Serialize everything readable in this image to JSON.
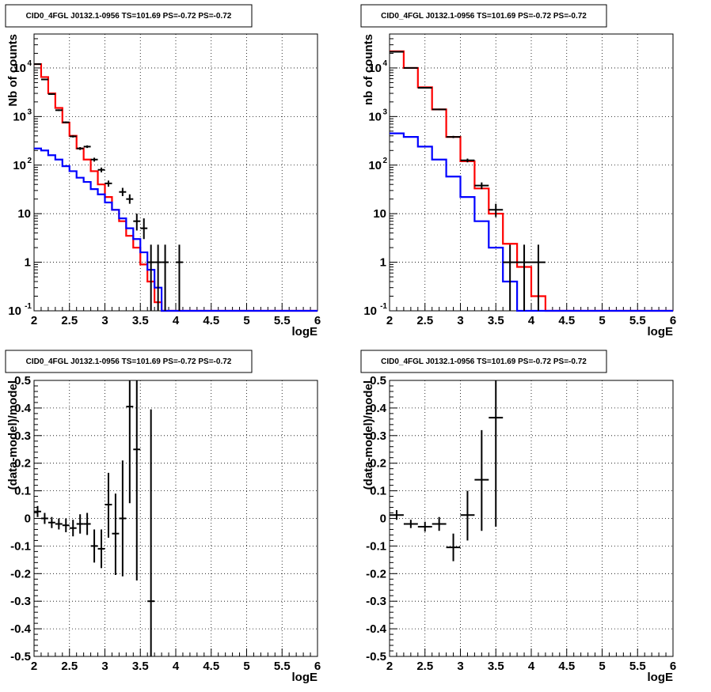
{
  "chart_data": [
    {
      "type": "line",
      "title": "CID0_4FGL J0132.1-0956 TS=101.69 PS=-0.72 PS=-0.72",
      "xlabel": "logE",
      "ylabel": "Nb of counts",
      "xlim": [
        2,
        6
      ],
      "ylim": [
        0.1,
        50000
      ],
      "log_y": true,
      "grid": true,
      "x_ticks": [
        "2",
        "2.5",
        "3",
        "3.5",
        "4",
        "4.5",
        "5",
        "5.5",
        "6"
      ],
      "y_ticks": [
        {
          "mant": "10",
          "exp": "-1",
          "v": 0.1
        },
        {
          "mant": "1",
          "exp": "",
          "v": 1
        },
        {
          "mant": "10",
          "exp": "",
          "v": 10
        },
        {
          "mant": "10",
          "exp": "2",
          "v": 100
        },
        {
          "mant": "10",
          "exp": "3",
          "v": 1000
        },
        {
          "mant": "10",
          "exp": "4",
          "v": 10000
        }
      ],
      "bin_width": 0.1,
      "bin_start": 2.0,
      "series": [
        {
          "color": "#ff0000",
          "values": [
            12000,
            6500,
            3000,
            1500,
            750,
            400,
            220,
            130,
            75,
            40,
            22,
            12,
            7,
            3.5,
            2.0,
            0.9,
            0.4,
            0.15,
            0.1,
            0.1,
            0.1,
            0.1,
            0.1,
            0.1,
            0.1,
            0.1,
            0.1,
            0.1,
            0.1,
            0.1,
            0.1,
            0.1,
            0.1,
            0.1,
            0.1,
            0.1,
            0.1,
            0.1,
            0.1,
            0.1
          ]
        },
        {
          "color": "#0000ff",
          "values": [
            220,
            200,
            160,
            130,
            95,
            75,
            55,
            45,
            32,
            25,
            17,
            12,
            8,
            5,
            3,
            1.6,
            0.7,
            0.3,
            0.1,
            0.1,
            0.1,
            0.1,
            0.1,
            0.1,
            0.1,
            0.1,
            0.1,
            0.1,
            0.1,
            0.1,
            0.1,
            0.1,
            0.1,
            0.1,
            0.1,
            0.1,
            0.1,
            0.1,
            0.1,
            0.1
          ]
        }
      ],
      "points": [
        {
          "x": 2.05,
          "y": 12000,
          "ylo": 11800,
          "yhi": 12200
        },
        {
          "x": 2.15,
          "y": 5800,
          "ylo": 5650,
          "yhi": 5950
        },
        {
          "x": 2.25,
          "y": 2900,
          "ylo": 2800,
          "yhi": 3000
        },
        {
          "x": 2.35,
          "y": 1350,
          "ylo": 1300,
          "yhi": 1400
        },
        {
          "x": 2.45,
          "y": 760,
          "ylo": 730,
          "yhi": 790
        },
        {
          "x": 2.55,
          "y": 390,
          "ylo": 370,
          "yhi": 410
        },
        {
          "x": 2.65,
          "y": 220,
          "ylo": 205,
          "yhi": 235
        },
        {
          "x": 2.75,
          "y": 240,
          "ylo": 225,
          "yhi": 255
        },
        {
          "x": 2.85,
          "y": 130,
          "ylo": 118,
          "yhi": 142
        },
        {
          "x": 2.95,
          "y": 80,
          "ylo": 71,
          "yhi": 89
        },
        {
          "x": 3.05,
          "y": 42,
          "ylo": 36,
          "yhi": 48
        },
        {
          "x": 3.25,
          "y": 28,
          "ylo": 23,
          "yhi": 34
        },
        {
          "x": 3.35,
          "y": 20,
          "ylo": 16,
          "yhi": 25
        },
        {
          "x": 3.45,
          "y": 7,
          "ylo": 4.5,
          "yhi": 10
        },
        {
          "x": 3.55,
          "y": 5,
          "ylo": 3,
          "yhi": 8
        },
        {
          "x": 3.65,
          "y": 1,
          "ylo": 0.1,
          "yhi": 2.3
        },
        {
          "x": 3.75,
          "y": 1,
          "ylo": 0.1,
          "yhi": 2.3
        },
        {
          "x": 3.85,
          "y": 1,
          "ylo": 0.1,
          "yhi": 2.3
        },
        {
          "x": 4.05,
          "y": 1,
          "ylo": 0.1,
          "yhi": 2.3
        }
      ]
    },
    {
      "type": "line",
      "title": "CID0_4FGL J0132.1-0956 TS=101.69 PS=-0.72 PS=-0.72",
      "xlabel": "logE",
      "ylabel": "nb of counts",
      "xlim": [
        2,
        6
      ],
      "ylim": [
        0.1,
        50000
      ],
      "log_y": true,
      "grid": true,
      "x_ticks": [
        "2",
        "2.5",
        "3",
        "3.5",
        "4",
        "4.5",
        "5",
        "5.5",
        "6"
      ],
      "y_ticks": [
        {
          "mant": "10",
          "exp": "-1",
          "v": 0.1
        },
        {
          "mant": "1",
          "exp": "",
          "v": 1
        },
        {
          "mant": "10",
          "exp": "",
          "v": 10
        },
        {
          "mant": "10",
          "exp": "2",
          "v": 100
        },
        {
          "mant": "10",
          "exp": "3",
          "v": 1000
        },
        {
          "mant": "10",
          "exp": "4",
          "v": 10000
        }
      ],
      "bin_width": 0.2,
      "bin_start": 2.0,
      "series": [
        {
          "color": "#ff0000",
          "values": [
            22000,
            10000,
            4000,
            1400,
            380,
            120,
            33,
            10,
            2.4,
            0.8,
            0.2,
            0.1,
            0.1,
            0.1,
            0.1,
            0.1,
            0.1,
            0.1,
            0.1,
            0.1
          ]
        },
        {
          "color": "#0000ff",
          "values": [
            450,
            380,
            240,
            130,
            58,
            22,
            7,
            2,
            0.4,
            0.1,
            0.1,
            0.1,
            0.1,
            0.1,
            0.1,
            0.1,
            0.1,
            0.1,
            0.1,
            0.1
          ]
        }
      ],
      "points": [
        {
          "x": 2.1,
          "y": 21500,
          "ylo": 21300,
          "yhi": 21700
        },
        {
          "x": 2.3,
          "y": 10000,
          "ylo": 9850,
          "yhi": 10150
        },
        {
          "x": 2.5,
          "y": 3900,
          "ylo": 3800,
          "yhi": 4000
        },
        {
          "x": 2.7,
          "y": 1400,
          "ylo": 1350,
          "yhi": 1450
        },
        {
          "x": 2.9,
          "y": 380,
          "ylo": 360,
          "yhi": 400
        },
        {
          "x": 3.1,
          "y": 125,
          "ylo": 114,
          "yhi": 136
        },
        {
          "x": 3.3,
          "y": 38,
          "ylo": 32,
          "yhi": 44
        },
        {
          "x": 3.5,
          "y": 12,
          "ylo": 8.5,
          "yhi": 16
        },
        {
          "x": 3.7,
          "y": 1,
          "ylo": 0.1,
          "yhi": 2.3
        },
        {
          "x": 3.9,
          "y": 1,
          "ylo": 0.1,
          "yhi": 2.3
        },
        {
          "x": 4.1,
          "y": 1,
          "ylo": 0.1,
          "yhi": 2.3
        }
      ]
    },
    {
      "type": "scatter",
      "title": "CID0_4FGL J0132.1-0956 TS=101.69 PS=-0.72 PS=-0.72",
      "xlabel": "logE",
      "ylabel": "(data-model)/model",
      "xlim": [
        2,
        6
      ],
      "ylim": [
        -0.5,
        0.5
      ],
      "log_y": false,
      "grid": true,
      "x_ticks": [
        "2",
        "2.5",
        "3",
        "3.5",
        "4",
        "4.5",
        "5",
        "5.5",
        "6"
      ],
      "y_ticks": [
        "-0.5",
        "-0.4",
        "-0.3",
        "-0.2",
        "-0.1",
        "0",
        "0.1",
        "0.2",
        "0.3",
        "0.4",
        "0.5"
      ],
      "bin_width": 0.1,
      "points": [
        {
          "x": 2.05,
          "y": 0.025,
          "ylo": 0.005,
          "yhi": 0.045
        },
        {
          "x": 2.15,
          "y": 0.0,
          "ylo": -0.02,
          "yhi": 0.02
        },
        {
          "x": 2.25,
          "y": -0.015,
          "ylo": -0.035,
          "yhi": 0.005
        },
        {
          "x": 2.35,
          "y": -0.02,
          "ylo": -0.04,
          "yhi": 0.0
        },
        {
          "x": 2.45,
          "y": -0.025,
          "ylo": -0.05,
          "yhi": 0.0
        },
        {
          "x": 2.55,
          "y": -0.035,
          "ylo": -0.065,
          "yhi": -0.005
        },
        {
          "x": 2.65,
          "y": -0.02,
          "ylo": -0.055,
          "yhi": 0.015
        },
        {
          "x": 2.75,
          "y": -0.02,
          "ylo": -0.06,
          "yhi": 0.02
        },
        {
          "x": 2.85,
          "y": -0.1,
          "ylo": -0.16,
          "yhi": -0.04
        },
        {
          "x": 2.95,
          "y": -0.11,
          "ylo": -0.18,
          "yhi": -0.04
        },
        {
          "x": 3.05,
          "y": 0.05,
          "ylo": -0.07,
          "yhi": 0.165
        },
        {
          "x": 3.15,
          "y": -0.055,
          "ylo": -0.205,
          "yhi": 0.09
        },
        {
          "x": 3.25,
          "y": 0.0,
          "ylo": -0.21,
          "yhi": 0.21
        },
        {
          "x": 3.35,
          "y": 0.405,
          "ylo": 0.055,
          "yhi": 0.5
        },
        {
          "x": 3.45,
          "y": 0.25,
          "ylo": -0.225,
          "yhi": 0.5
        },
        {
          "x": 3.65,
          "y": -0.3,
          "ylo": -0.5,
          "yhi": 0.395
        }
      ]
    },
    {
      "type": "scatter",
      "title": "CID0_4FGL J0132.1-0956 TS=101.69 PS=-0.72 PS=-0.72",
      "xlabel": "logE",
      "ylabel": "(data-model)/model",
      "xlim": [
        2,
        6
      ],
      "ylim": [
        -0.5,
        0.5
      ],
      "log_y": false,
      "grid": true,
      "x_ticks": [
        "2",
        "2.5",
        "3",
        "3.5",
        "4",
        "4.5",
        "5",
        "5.5",
        "6"
      ],
      "y_ticks": [
        "-0.5",
        "-0.4",
        "-0.3",
        "-0.2",
        "-0.1",
        "0",
        "0.1",
        "0.2",
        "0.3",
        "0.4",
        "0.5"
      ],
      "bin_width": 0.2,
      "points": [
        {
          "x": 2.1,
          "y": 0.012,
          "ylo": -0.005,
          "yhi": 0.03
        },
        {
          "x": 2.3,
          "y": -0.02,
          "ylo": -0.035,
          "yhi": -0.005
        },
        {
          "x": 2.5,
          "y": -0.03,
          "ylo": -0.048,
          "yhi": -0.012
        },
        {
          "x": 2.7,
          "y": -0.02,
          "ylo": -0.045,
          "yhi": 0.005
        },
        {
          "x": 2.9,
          "y": -0.105,
          "ylo": -0.155,
          "yhi": -0.055
        },
        {
          "x": 3.1,
          "y": 0.012,
          "ylo": -0.08,
          "yhi": 0.1
        },
        {
          "x": 3.3,
          "y": 0.14,
          "ylo": -0.045,
          "yhi": 0.32
        },
        {
          "x": 3.5,
          "y": 0.365,
          "ylo": -0.03,
          "yhi": 0.5
        }
      ]
    }
  ]
}
